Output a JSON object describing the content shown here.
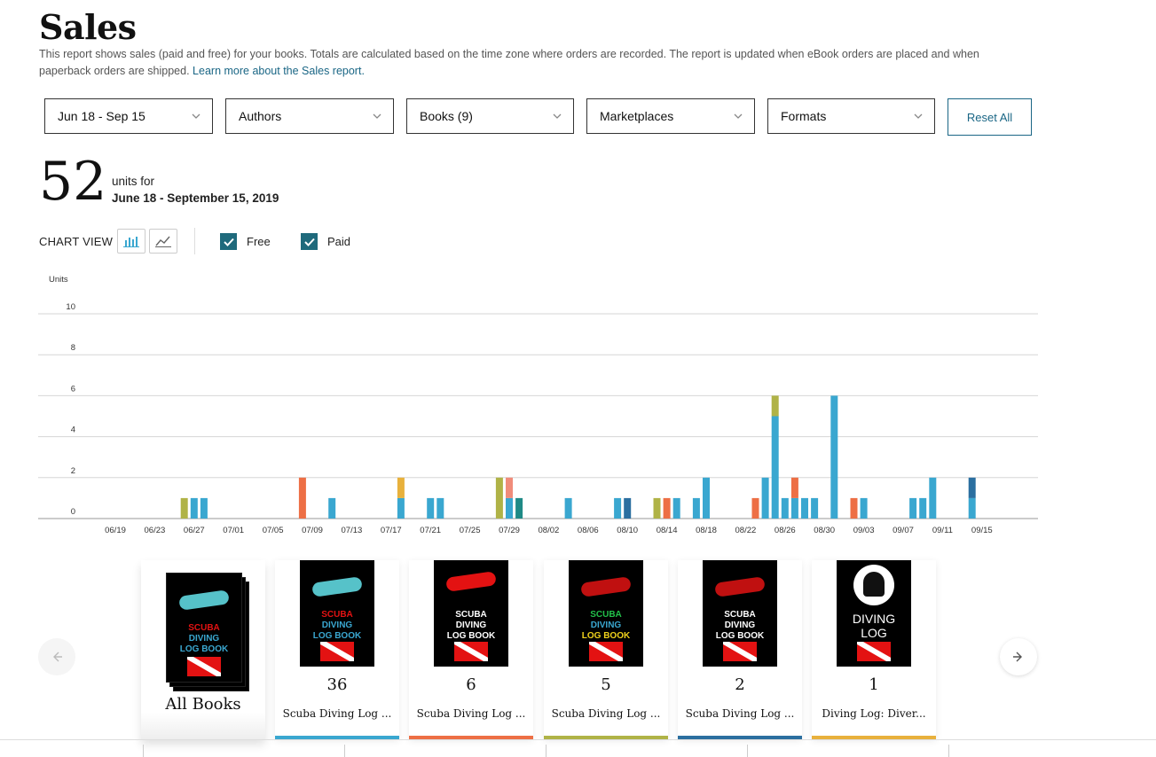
{
  "header": {
    "title": "Sales",
    "description": "This report shows sales (paid and free) for your books. Totals are calculated based on the time zone where orders are recorded. The report is updated when eBook orders are placed and when paperback orders are shipped.",
    "learn_more": "Learn more about the Sales report."
  },
  "filters": {
    "date": "Jun 18 - Sep 15",
    "authors": "Authors",
    "books": "Books (9)",
    "marketplaces": "Marketplaces",
    "formats": "Formats",
    "reset": "Reset All"
  },
  "summary": {
    "units": "52",
    "units_for": "units for",
    "range": "June 18 - September 15, 2019"
  },
  "chart_controls": {
    "label": "CHART VIEW",
    "bar_icon": "bar-chart-icon",
    "line_icon": "line-chart-icon",
    "free_label": "Free",
    "paid_label": "Paid",
    "free_checked": true,
    "paid_checked": true
  },
  "colors": {
    "accent": "#1a6685",
    "checkbox": "#1f6a7c",
    "book1": "#3aa7d0",
    "book2": "#ed6f45",
    "book3": "#b0b347",
    "book4": "#2b6fa0",
    "book5": "#e8b13c",
    "book6": "#1f8a86",
    "book7": "#f08c7a"
  },
  "chart_data": {
    "type": "bar",
    "stacked": true,
    "ylabel": "Units",
    "ylim": [
      0,
      10
    ],
    "yticks": [
      "0",
      "2",
      "4",
      "6",
      "8",
      "10"
    ],
    "grid": true,
    "x_tick_labels": [
      "06/19",
      "06/23",
      "06/27",
      "07/01",
      "07/05",
      "07/09",
      "07/13",
      "07/17",
      "07/21",
      "07/25",
      "07/29",
      "08/02",
      "08/06",
      "08/10",
      "08/14",
      "08/18",
      "08/22",
      "08/26",
      "08/30",
      "09/03",
      "09/07",
      "09/11",
      "09/15"
    ],
    "bars": [
      {
        "date": "06/26",
        "segments": [
          {
            "color": "#b0b347",
            "value": 1
          }
        ]
      },
      {
        "date": "06/27",
        "segments": [
          {
            "color": "#3aa7d0",
            "value": 1
          }
        ]
      },
      {
        "date": "06/28",
        "segments": [
          {
            "color": "#3aa7d0",
            "value": 1
          }
        ]
      },
      {
        "date": "07/08",
        "segments": [
          {
            "color": "#ed6f45",
            "value": 2
          }
        ]
      },
      {
        "date": "07/11",
        "segments": [
          {
            "color": "#3aa7d0",
            "value": 1
          }
        ]
      },
      {
        "date": "07/18",
        "segments": [
          {
            "color": "#3aa7d0",
            "value": 1
          },
          {
            "color": "#e8b13c",
            "value": 1
          }
        ]
      },
      {
        "date": "07/21",
        "segments": [
          {
            "color": "#3aa7d0",
            "value": 1
          }
        ]
      },
      {
        "date": "07/22",
        "segments": [
          {
            "color": "#3aa7d0",
            "value": 1
          }
        ]
      },
      {
        "date": "07/28",
        "segments": [
          {
            "color": "#b0b347",
            "value": 2
          }
        ]
      },
      {
        "date": "07/29",
        "segments": [
          {
            "color": "#3aa7d0",
            "value": 1
          },
          {
            "color": "#f08c7a",
            "value": 1
          }
        ]
      },
      {
        "date": "07/30",
        "segments": [
          {
            "color": "#1f8a86",
            "value": 1
          }
        ]
      },
      {
        "date": "08/04",
        "segments": [
          {
            "color": "#3aa7d0",
            "value": 1
          }
        ]
      },
      {
        "date": "08/09",
        "segments": [
          {
            "color": "#3aa7d0",
            "value": 1
          }
        ]
      },
      {
        "date": "08/10",
        "segments": [
          {
            "color": "#2b6fa0",
            "value": 1
          }
        ]
      },
      {
        "date": "08/13",
        "segments": [
          {
            "color": "#b0b347",
            "value": 1
          }
        ]
      },
      {
        "date": "08/14",
        "segments": [
          {
            "color": "#ed6f45",
            "value": 1
          }
        ]
      },
      {
        "date": "08/15",
        "segments": [
          {
            "color": "#3aa7d0",
            "value": 1
          }
        ]
      },
      {
        "date": "08/17",
        "segments": [
          {
            "color": "#3aa7d0",
            "value": 1
          }
        ]
      },
      {
        "date": "08/18",
        "segments": [
          {
            "color": "#3aa7d0",
            "value": 2
          }
        ]
      },
      {
        "date": "08/23",
        "segments": [
          {
            "color": "#ed6f45",
            "value": 1
          }
        ]
      },
      {
        "date": "08/24",
        "segments": [
          {
            "color": "#3aa7d0",
            "value": 2
          }
        ]
      },
      {
        "date": "08/25",
        "segments": [
          {
            "color": "#3aa7d0",
            "value": 5
          },
          {
            "color": "#b0b347",
            "value": 1
          }
        ]
      },
      {
        "date": "08/26",
        "segments": [
          {
            "color": "#3aa7d0",
            "value": 1
          }
        ]
      },
      {
        "date": "08/27",
        "segments": [
          {
            "color": "#3aa7d0",
            "value": 1
          },
          {
            "color": "#ed6f45",
            "value": 1
          }
        ]
      },
      {
        "date": "08/28",
        "segments": [
          {
            "color": "#3aa7d0",
            "value": 1
          }
        ]
      },
      {
        "date": "08/29",
        "segments": [
          {
            "color": "#3aa7d0",
            "value": 1
          }
        ]
      },
      {
        "date": "08/31",
        "segments": [
          {
            "color": "#3aa7d0",
            "value": 6
          }
        ]
      },
      {
        "date": "09/02",
        "segments": [
          {
            "color": "#ed6f45",
            "value": 1
          }
        ]
      },
      {
        "date": "09/03",
        "segments": [
          {
            "color": "#3aa7d0",
            "value": 1
          }
        ]
      },
      {
        "date": "09/08",
        "segments": [
          {
            "color": "#3aa7d0",
            "value": 1
          }
        ]
      },
      {
        "date": "09/09",
        "segments": [
          {
            "color": "#3aa7d0",
            "value": 1
          }
        ]
      },
      {
        "date": "09/10",
        "segments": [
          {
            "color": "#3aa7d0",
            "value": 2
          }
        ]
      },
      {
        "date": "09/14",
        "segments": [
          {
            "color": "#3aa7d0",
            "value": 1
          },
          {
            "color": "#2b6fa0",
            "value": 1
          }
        ]
      }
    ]
  },
  "books": [
    {
      "label": "All Books",
      "count": "",
      "cover_lines": [
        "SCUBA",
        "DIVING",
        "LOG BOOK"
      ],
      "cover_colors": [
        "#e31212",
        "#3aa7d0",
        "#3aa7d0"
      ]
    },
    {
      "label": "Scuba Diving Log ...",
      "count": "36",
      "cover_lines": [
        "SCUBA",
        "DIVING",
        "LOG BOOK"
      ],
      "cover_colors": [
        "#e31212",
        "#3aa7d0",
        "#3aa7d0"
      ],
      "color": "#3aa7d0"
    },
    {
      "label": "Scuba Diving Log ...",
      "count": "6",
      "cover_lines": [
        "SCUBA",
        "DIVING",
        "LOG BOOK"
      ],
      "cover_colors": [
        "#ffffff",
        "#ffffff",
        "#ffffff"
      ],
      "color": "#ed6f45"
    },
    {
      "label": "Scuba Diving Log ...",
      "count": "5",
      "cover_lines": [
        "SCUBA",
        "DIVING",
        "LOG BOOK"
      ],
      "cover_colors": [
        "#22c04a",
        "#3aa7d0",
        "#f0d21c"
      ],
      "color": "#b0b347"
    },
    {
      "label": "Scuba Diving Log ...",
      "count": "2",
      "cover_lines": [
        "SCUBA",
        "DIVING",
        "LOG BOOK"
      ],
      "cover_colors": [
        "#ffffff",
        "#ffffff",
        "#ffffff"
      ],
      "color": "#2b6fa0"
    },
    {
      "label": "Diving Log: Diver...",
      "count": "1",
      "cover_lines": [
        "DIVING",
        "LOG"
      ],
      "cover_colors": [
        "#ffffff",
        "#ffffff"
      ],
      "color": "#e8b13c"
    }
  ],
  "nav": {
    "prev_icon": "arrow-left-icon",
    "next_icon": "arrow-right-icon"
  }
}
